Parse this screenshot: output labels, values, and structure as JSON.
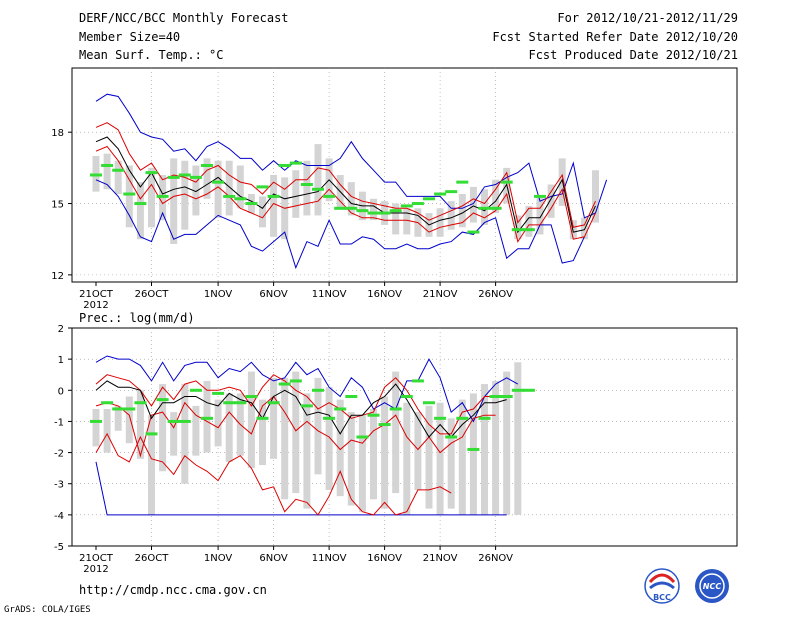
{
  "header": {
    "left": [
      "DERF/NCC/BCC Monthly Forecast",
      "Member Size=40",
      "Mean Surf. Temp.: °C"
    ],
    "right": [
      "For 2012/10/21-2012/11/29",
      "Fcst Started Refer Date 2012/10/20",
      "Fcst Produced Date 2012/10/21"
    ]
  },
  "footer": {
    "url": "http://cmdp.ncc.cma.gov.cn",
    "grads": "GrADS: COLA/IGES",
    "logo1": "BCC",
    "logo2": "NCC"
  },
  "colors": {
    "max_line": "#0000cc",
    "spread_line": "#dd0000",
    "mean_line": "#000000",
    "ensemble_box": "#d4d4d4",
    "obs_marker": "#33dd33"
  },
  "chart_data": [
    {
      "type": "line",
      "title": "Mean Surf. Temp.: °C",
      "x_start_label": "21OCT",
      "x_year_label": "2012",
      "xtick_labels": [
        "21OCT",
        "26OCT",
        "1NOV",
        "6NOV",
        "11NOV",
        "16NOV",
        "21NOV",
        "26NOV"
      ],
      "xtick_days": [
        1,
        6,
        12,
        17,
        22,
        27,
        32,
        37
      ],
      "ytick_labels": [
        "12",
        "15",
        "18"
      ],
      "ylim": [
        11.7,
        20.7
      ],
      "series": [
        {
          "name": "max",
          "values": [
            19.3,
            19.6,
            19.5,
            18.8,
            18.0,
            17.8,
            17.7,
            17.2,
            17.3,
            16.8,
            17.4,
            17.6,
            17.3,
            16.9,
            16.9,
            16.4,
            16.8,
            16.4,
            16.8,
            16.6,
            16.6,
            16.6,
            16.9,
            17.6,
            16.9,
            16.4,
            15.9,
            15.9,
            15.3,
            15.3,
            15.3,
            15.3,
            14.8,
            14.8,
            15.0,
            15.7,
            15.8,
            16.1,
            16.3,
            16.7,
            15.1,
            15.3,
            15.4,
            16.7,
            14.4,
            14.6,
            16.0
          ]
        },
        {
          "name": "upper",
          "values": [
            18.2,
            18.4,
            18.1,
            17.1,
            16.4,
            16.7,
            16.0,
            16.2,
            16.1,
            15.9,
            16.4,
            16.6,
            16.2,
            15.9,
            15.8,
            15.4,
            15.9,
            15.6,
            16.0,
            16.0,
            16.5,
            16.4,
            15.8,
            15.3,
            15.1,
            15.0,
            14.9,
            14.8,
            14.8,
            14.6,
            14.3,
            14.5,
            14.7,
            14.9,
            15.2,
            15.0,
            15.6,
            16.3,
            14.2,
            14.8,
            14.8,
            15.5,
            16.2,
            14.0,
            14.1,
            15.1
          ]
        },
        {
          "name": "mean",
          "values": [
            17.6,
            17.8,
            17.3,
            16.4,
            15.7,
            16.3,
            15.4,
            15.6,
            15.7,
            15.5,
            15.8,
            16.1,
            15.7,
            15.3,
            15.1,
            14.8,
            15.4,
            15.2,
            15.3,
            15.4,
            15.5,
            16.0,
            15.5,
            15.0,
            14.9,
            14.9,
            14.6,
            14.6,
            14.6,
            14.5,
            14.1,
            14.3,
            14.4,
            14.6,
            14.9,
            14.7,
            15.1,
            15.8,
            13.8,
            14.4,
            14.4,
            15.2,
            16.0,
            13.8,
            13.9,
            14.9
          ]
        },
        {
          "name": "lower",
          "values": [
            17.2,
            17.4,
            16.8,
            16.0,
            15.2,
            15.8,
            15.0,
            15.3,
            15.4,
            15.2,
            15.4,
            15.7,
            15.3,
            14.8,
            14.6,
            14.4,
            15.0,
            14.8,
            14.9,
            15.0,
            15.1,
            15.6,
            15.1,
            14.6,
            14.4,
            14.4,
            14.3,
            14.3,
            14.3,
            14.2,
            13.8,
            14.0,
            14.1,
            14.2,
            14.6,
            14.4,
            14.7,
            15.4,
            13.4,
            14.1,
            14.1,
            14.8,
            15.6,
            13.5,
            13.6,
            14.6
          ]
        },
        {
          "name": "min",
          "values": [
            16.0,
            15.8,
            15.3,
            14.5,
            13.6,
            13.4,
            14.6,
            13.5,
            13.7,
            13.7,
            14.1,
            14.5,
            14.3,
            14.1,
            13.2,
            13.0,
            13.4,
            13.8,
            12.3,
            13.4,
            13.2,
            14.3,
            13.3,
            13.3,
            13.6,
            13.5,
            13.1,
            13.1,
            13.3,
            13.1,
            13.1,
            13.3,
            13.4,
            13.8,
            13.7,
            14.2,
            14.4,
            12.7,
            13.1,
            13.1,
            14.1,
            14.1,
            12.5,
            12.6,
            13.6
          ]
        },
        {
          "name": "box_top",
          "values": [
            17.0,
            17.1,
            16.8,
            16.6,
            15.9,
            16.5,
            16.2,
            16.9,
            16.8,
            16.6,
            16.9,
            16.8,
            16.8,
            16.6,
            15.4,
            15.3,
            16.2,
            16.1,
            16.4,
            16.8,
            17.5,
            16.9,
            16.2,
            15.9,
            15.5,
            15.2,
            15.1,
            15.0,
            14.8,
            14.8,
            14.6,
            14.8,
            15.1,
            15.4,
            15.7,
            15.6,
            16.0,
            16.5,
            14.5,
            14.9,
            15.3,
            15.8,
            16.9,
            14.3,
            14.4,
            16.4
          ]
        },
        {
          "name": "box_bottom",
          "values": [
            15.5,
            15.6,
            15.4,
            14.0,
            13.5,
            14.0,
            14.3,
            13.3,
            13.9,
            14.5,
            15.2,
            14.4,
            14.5,
            14.8,
            14.6,
            14.0,
            13.6,
            13.5,
            14.4,
            14.5,
            14.5,
            15.1,
            14.8,
            14.5,
            14.3,
            14.3,
            14.1,
            13.7,
            13.7,
            13.6,
            13.6,
            13.6,
            13.9,
            14.0,
            14.2,
            14.1,
            14.6,
            15.0,
            13.5,
            13.6,
            13.7,
            14.4,
            14.9,
            13.5,
            13.5,
            14.2
          ]
        },
        {
          "name": "obs",
          "values": [
            16.2,
            16.6,
            16.4,
            15.4,
            15.0,
            16.3,
            15.3,
            16.1,
            16.2,
            16.1,
            16.6,
            15.9,
            15.3,
            15.2,
            15.0,
            15.7,
            15.3,
            16.6,
            16.7,
            15.8,
            15.6,
            15.3,
            14.8,
            14.8,
            14.7,
            14.6,
            14.6,
            14.7,
            14.9,
            15.0,
            15.2,
            15.4,
            15.5,
            15.9,
            13.8,
            14.8,
            14.8,
            15.9,
            13.9,
            13.9,
            15.3
          ]
        }
      ]
    },
    {
      "type": "line",
      "title": "Prec.: log(mm/d)",
      "x_start_label": "21OCT",
      "x_year_label": "2012",
      "xtick_labels": [
        "21OCT",
        "26OCT",
        "1NOV",
        "6NOV",
        "11NOV",
        "16NOV",
        "21NOV",
        "26NOV"
      ],
      "xtick_days": [
        1,
        6,
        12,
        17,
        22,
        27,
        32,
        37
      ],
      "ytick_labels": [
        "-5",
        "-4",
        "-3",
        "-2",
        "-1",
        "0",
        "1",
        "2"
      ],
      "ylim": [
        -5,
        2
      ],
      "series": [
        {
          "name": "max",
          "values": [
            0.9,
            1.1,
            1.0,
            1.0,
            0.8,
            0.3,
            0.9,
            0.3,
            0.8,
            0.9,
            0.9,
            0.4,
            0.7,
            0.6,
            0.9,
            0.5,
            0.3,
            0.4,
            0.9,
            0.5,
            0.7,
            0.1,
            -0.2,
            0.4,
            0.1,
            -0.6,
            -0.4,
            -0.6,
            0.3,
            0.3,
            1.0,
            0.4,
            -0.7,
            -0.4,
            -1.0,
            -0.2,
            0.2,
            0.4,
            0.2
          ]
        },
        {
          "name": "upper",
          "values": [
            0.2,
            0.5,
            0.4,
            0.3,
            0.0,
            -0.5,
            0.1,
            -0.3,
            0.2,
            0.3,
            0.0,
            0.0,
            0.1,
            0.0,
            -0.5,
            0.1,
            0.5,
            0.3,
            0.0,
            -0.2,
            -0.6,
            -0.4,
            -0.6,
            -0.9,
            -0.8,
            -0.7,
            0.1,
            0.4,
            0.0,
            -0.6,
            -1.1,
            -1.4,
            -1.4,
            -0.7,
            -0.6,
            -0.2,
            -0.2
          ]
        },
        {
          "name": "mean",
          "values": [
            0.0,
            0.3,
            0.1,
            0.1,
            0.0,
            -0.9,
            -0.4,
            -0.4,
            -0.2,
            -0.2,
            -0.4,
            -0.5,
            -0.1,
            -0.3,
            -0.4,
            -0.9,
            -0.2,
            0.0,
            -0.2,
            -0.8,
            -0.7,
            -0.8,
            -1.4,
            -0.8,
            -0.8,
            -0.4,
            -0.2,
            0.2,
            -0.3,
            -0.9,
            -1.5,
            -1.1,
            -1.5,
            -1.1,
            -0.8,
            -0.4,
            -0.4,
            -0.3
          ]
        },
        {
          "name": "lower",
          "values": [
            -0.5,
            -0.4,
            -0.5,
            -0.8,
            -2.1,
            -0.8,
            -0.7,
            -1.2,
            -0.4,
            -0.8,
            -1.0,
            -1.2,
            -0.7,
            -1.1,
            -1.4,
            -0.5,
            -0.2,
            -0.7,
            -1.3,
            -1.0,
            -1.3,
            -1.5,
            -1.9,
            -1.6,
            -1.7,
            -1.3,
            -1.1,
            -0.8,
            -1.5,
            -1.9,
            -1.5,
            -2.0,
            -1.7,
            -1.5,
            -0.9,
            -0.8,
            -0.8
          ]
        },
        {
          "name": "min",
          "values": [
            -2.3,
            -4.0,
            -4.0,
            -4.0,
            -4.0,
            -4.0,
            -4.0,
            -4.0,
            -4.0,
            -4.0,
            -4.0,
            -4.0,
            -4.0,
            -4.0,
            -4.0,
            -4.0,
            -4.0,
            -4.0,
            -4.0,
            -4.0,
            -4.0,
            -4.0,
            -4.0,
            -4.0,
            -4.0,
            -4.0,
            -4.0,
            -4.0,
            -4.0,
            -4.0,
            -4.0,
            -4.0,
            -4.0,
            -4.0,
            -4.0,
            -4.0,
            -4.0,
            -4.0
          ]
        },
        {
          "name": "red_low",
          "values": [
            -2.0,
            -1.4,
            -2.1,
            -2.3,
            -1.5,
            -2.2,
            -2.3,
            -2.7,
            -2.1,
            -2.4,
            -2.6,
            -2.9,
            -2.3,
            -2.1,
            -2.5,
            -3.2,
            -3.1,
            -3.9,
            -3.5,
            -3.6,
            -4.0,
            -3.4,
            -2.6,
            -3.5,
            -3.9,
            -4.0,
            -3.6,
            -4.0,
            -3.9,
            -3.2,
            -3.2,
            -3.1,
            -3.3
          ]
        },
        {
          "name": "box_top",
          "values": [
            -0.6,
            -0.6,
            -0.5,
            -0.2,
            0.0,
            -0.8,
            0.2,
            -0.7,
            0.2,
            -0.5,
            0.3,
            -0.3,
            -0.1,
            -0.1,
            0.6,
            -0.3,
            0.4,
            0.4,
            0.6,
            -0.1,
            0.4,
            0.1,
            -0.3,
            -0.7,
            -0.8,
            -0.6,
            -0.2,
            0.6,
            -0.4,
            -0.7,
            -0.5,
            -0.4,
            -0.9,
            -0.3,
            -0.1,
            0.2,
            0.3,
            0.6,
            0.9
          ]
        },
        {
          "name": "box_bottom",
          "values": [
            -1.8,
            -2.0,
            -1.3,
            -1.7,
            -2.2,
            -4.0,
            -2.6,
            -2.1,
            -3.0,
            -2.1,
            -2.0,
            -1.8,
            -2.3,
            -2.1,
            -2.5,
            -2.4,
            -2.2,
            -3.5,
            -3.3,
            -3.8,
            -2.7,
            -3.2,
            -3.4,
            -3.7,
            -3.9,
            -3.5,
            -3.8,
            -3.3,
            -4.0,
            -3.2,
            -3.8,
            -4.0,
            -3.8,
            -4.0,
            -4.0,
            -4.0,
            -4.0,
            -4.0,
            -4.0
          ]
        },
        {
          "name": "obs",
          "values": [
            -1.0,
            -0.4,
            -0.6,
            -0.6,
            -0.4,
            -1.4,
            -0.3,
            -1.0,
            -1.0,
            0.0,
            -0.9,
            -0.1,
            -0.4,
            -0.4,
            -0.2,
            -0.9,
            -0.4,
            0.2,
            0.3,
            -0.5,
            0.0,
            -0.9,
            -0.6,
            -0.2,
            -1.5,
            -0.8,
            -1.1,
            -0.6,
            -0.2,
            0.3,
            -0.4,
            -0.9,
            -1.5,
            -0.9,
            -1.9,
            -0.9,
            -0.2,
            -0.2,
            0.0,
            0.0
          ]
        }
      ]
    }
  ]
}
